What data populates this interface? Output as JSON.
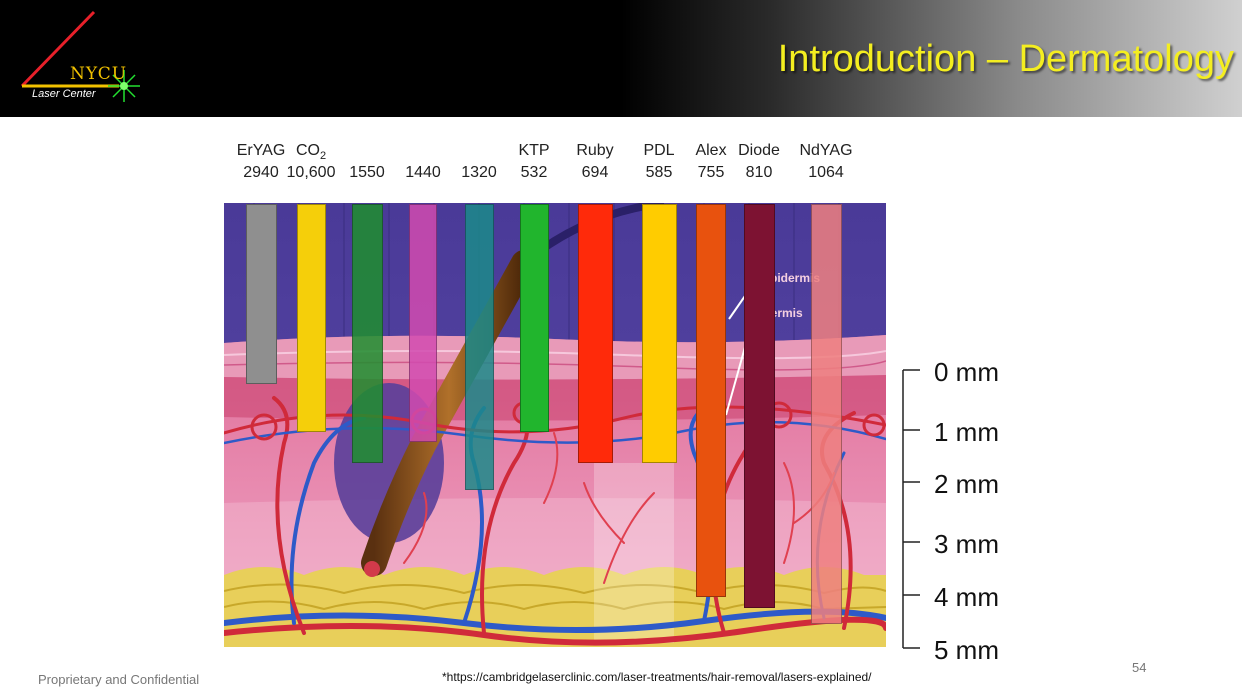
{
  "header": {
    "title": "Introduction – Dermatology",
    "logo": {
      "name": "NYCU",
      "subtitle": "Laser Center"
    }
  },
  "lasers": [
    {
      "name": "ErYAG",
      "wavelength": "2940",
      "color": "#8f8f8f",
      "depth_mm": 0.2
    },
    {
      "name": "CO",
      "subscript": "2",
      "wavelength": "10,600",
      "color": "#f5cf0a",
      "depth_mm": 1.0
    },
    {
      "name": "",
      "wavelength": "1550",
      "color": "#1f8f2f",
      "depth_mm": 1.6
    },
    {
      "name": "",
      "wavelength": "1440",
      "color": "#d24bb0",
      "depth_mm": 1.2
    },
    {
      "name": "",
      "wavelength": "1320",
      "color": "#1c8a8a",
      "depth_mm": 2.1
    },
    {
      "name": "KTP",
      "wavelength": "532",
      "color": "#21b52d",
      "depth_mm": 1.0
    },
    {
      "name": "Ruby",
      "wavelength": "694",
      "color": "#ff2a0a",
      "depth_mm": 1.6
    },
    {
      "name": "PDL",
      "wavelength": "585",
      "color": "#ffcc00",
      "depth_mm": 1.6
    },
    {
      "name": "Alex",
      "wavelength": "755",
      "color": "#e8520e",
      "depth_mm": 4.0
    },
    {
      "name": "Diode",
      "wavelength": "810",
      "color": "#7d1232",
      "depth_mm": 4.2
    },
    {
      "name": "NdYAG",
      "wavelength": "1064",
      "color": "#ef8080",
      "depth_mm": 4.5
    }
  ],
  "layers": {
    "epidermis": "Epidermis",
    "dermis": "Dermis"
  },
  "depth_scale": [
    "0 mm",
    "1 mm",
    "2 mm",
    "3 mm",
    "4 mm",
    "5 mm"
  ],
  "footer": {
    "confidential": "Proprietary and Confidential",
    "source": "*https://cambridgelaserclinic.com/laser-treatments/hair-removal/lasers-explained/",
    "page": "54"
  }
}
